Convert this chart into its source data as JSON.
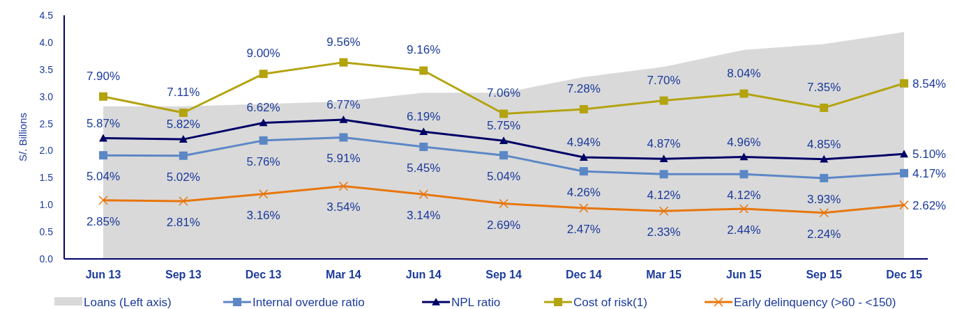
{
  "chart_data": {
    "type": "line",
    "ylabel": "S/. Billions",
    "categories": [
      "Jun 13",
      "Sep 13",
      "Dec 13",
      "Mar 14",
      "Jun 14",
      "Sep 14",
      "Dec 14",
      "Mar 15",
      "Jun 15",
      "Sep 15",
      "Dec 15"
    ],
    "ylim": [
      0,
      4.5
    ],
    "yticks": [
      {
        "value": 0,
        "label": "0.0"
      },
      {
        "value": 0.5,
        "label": "0.5"
      },
      {
        "value": 1,
        "label": "1.0"
      },
      {
        "value": 1.5,
        "label": "1.5"
      },
      {
        "value": 2,
        "label": "2.0"
      },
      {
        "value": 2.5,
        "label": "2.5"
      },
      {
        "value": 3,
        "label": "3.0"
      },
      {
        "value": 3.5,
        "label": "3.5"
      },
      {
        "value": 4,
        "label": "4.0"
      },
      {
        "value": 4.5,
        "label": "4.5"
      }
    ],
    "y2lim": [
      0,
      11.85
    ],
    "legend": "bottom",
    "grid": false,
    "series": [
      {
        "name": "Loans (Left axis)",
        "type": "area",
        "color": "#d9d9d9",
        "values": [
          2.82,
          2.82,
          2.86,
          2.91,
          3.07,
          3.07,
          3.36,
          3.55,
          3.86,
          3.97,
          4.19
        ]
      },
      {
        "name": "Internal overdue ratio",
        "color": "#5b87c5",
        "axis": "y2",
        "marker": "square",
        "values": [
          5.04,
          5.02,
          5.76,
          5.91,
          5.45,
          5.04,
          4.26,
          4.12,
          4.12,
          3.93,
          4.17
        ],
        "value_labels": [
          "5.04%",
          "5.02%",
          "5.76%",
          "5.91%",
          "5.45%",
          "5.04%",
          "4.26%",
          "4.12%",
          "4.12%",
          "3.93%",
          "4.17%"
        ]
      },
      {
        "name": "NPL ratio",
        "color": "#000066",
        "axis": "y2",
        "marker": "triangle",
        "values": [
          5.87,
          5.82,
          6.62,
          6.77,
          6.19,
          5.75,
          4.94,
          4.87,
          4.96,
          4.85,
          5.1
        ],
        "value_labels": [
          "5.87%",
          "5.82%",
          "6.62%",
          "6.77%",
          "6.19%",
          "5.75%",
          "4.94%",
          "4.87%",
          "4.96%",
          "4.85%",
          "5.10%"
        ]
      },
      {
        "name": "Cost of risk(1)",
        "color": "#b3a30f",
        "axis": "y2",
        "marker": "square",
        "values": [
          7.9,
          7.11,
          9.0,
          9.56,
          9.16,
          7.06,
          7.28,
          7.7,
          8.04,
          7.35,
          8.54
        ],
        "value_labels": [
          "7.90%",
          "7.11%",
          "9.00%",
          "9.56%",
          "9.16%",
          "7.06%",
          "7.28%",
          "7.70%",
          "8.04%",
          "7.35%",
          "8.54%"
        ]
      },
      {
        "name": "Early delinquency  (>60 - <150)",
        "color": "#e8760c",
        "axis": "y2",
        "marker": "cross",
        "values": [
          2.85,
          2.81,
          3.16,
          3.54,
          3.14,
          2.69,
          2.47,
          2.33,
          2.44,
          2.24,
          2.62
        ],
        "value_labels": [
          "2.85%",
          "2.81%",
          "3.16%",
          "3.54%",
          "3.14%",
          "2.69%",
          "2.47%",
          "2.33%",
          "2.44%",
          "2.24%",
          "2.62%"
        ]
      }
    ]
  }
}
